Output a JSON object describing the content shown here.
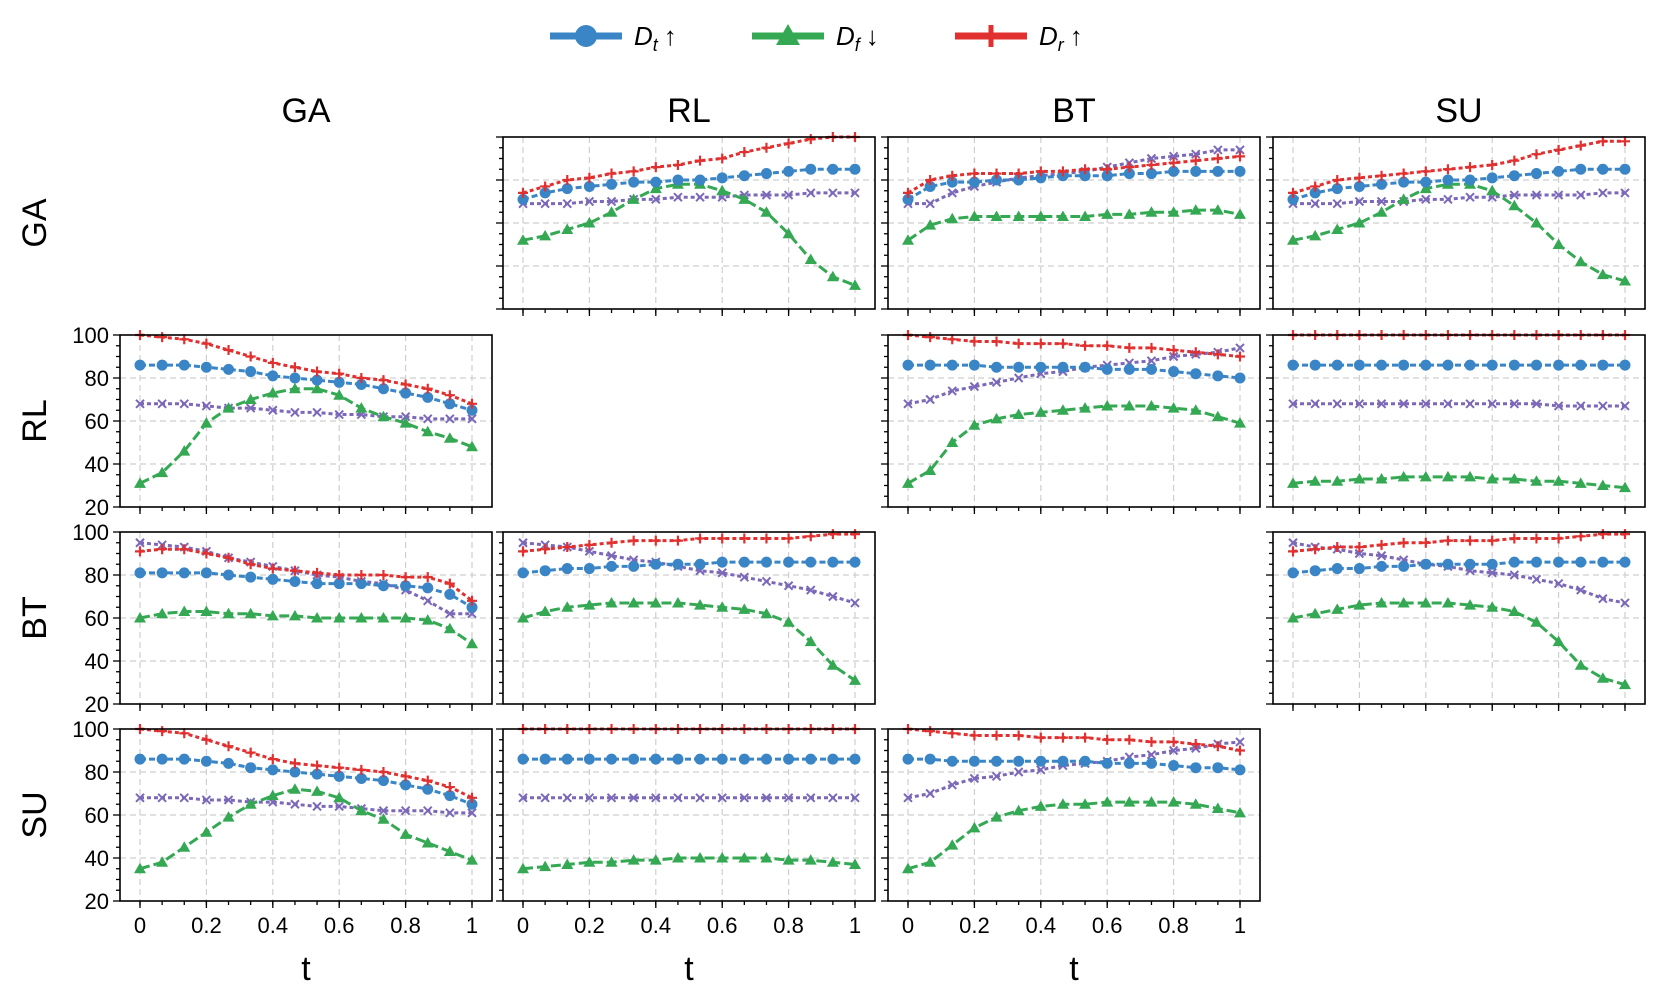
{
  "chart_data": {
    "type": "line",
    "title": "",
    "xlabel": "t",
    "ylabel": "",
    "xlim": [
      0,
      1
    ],
    "ylim": [
      20,
      100
    ],
    "x_ticks": [
      "0",
      "0.2",
      "0.4",
      "0.6",
      "0.8",
      "1"
    ],
    "y_ticks": [
      "20",
      "40",
      "60",
      "80",
      "100"
    ],
    "columns": [
      "GA",
      "RL",
      "BT",
      "SU"
    ],
    "rows": [
      "GA",
      "RL",
      "BT",
      "SU"
    ],
    "x": [
      0,
      0.0667,
      0.1333,
      0.2,
      0.2667,
      0.3333,
      0.4,
      0.4667,
      0.5333,
      0.6,
      0.6667,
      0.7333,
      0.8,
      0.8667,
      0.9333,
      1
    ],
    "legend": [
      {
        "key": "Dt",
        "base": "D",
        "sub": "t",
        "arrow": "↑",
        "color": "#3a85c6",
        "marker": "circle"
      },
      {
        "key": "Df",
        "base": "D",
        "sub": "f",
        "arrow": "↓",
        "color": "#35a853",
        "marker": "triangle"
      },
      {
        "key": "Dr",
        "base": "D",
        "sub": "r",
        "arrow": "↑",
        "color": "#e0302f",
        "marker": "plus"
      }
    ],
    "series_styles": {
      "Dt": {
        "color": "#3a85c6",
        "marker": "circle"
      },
      "Df": {
        "color": "#35a853",
        "marker": "triangle"
      },
      "Dr": {
        "color": "#e0302f",
        "marker": "plus"
      },
      "Dx": {
        "color": "#7b68b8",
        "marker": "x"
      }
    },
    "panels": [
      {
        "row": "GA",
        "col": "RL",
        "series": {
          "Dr": [
            74,
            77,
            80,
            81,
            83,
            84,
            86,
            87,
            89,
            90,
            93,
            95,
            97,
            99,
            100,
            100
          ],
          "Dt": [
            71,
            74,
            76,
            77,
            78,
            79,
            79,
            80,
            80,
            81,
            82,
            83,
            84,
            85,
            85,
            85
          ],
          "Df": [
            52,
            54,
            57,
            60,
            65,
            71,
            76,
            78,
            78,
            75,
            71,
            65,
            55,
            43,
            35,
            31
          ],
          "Dx": [
            69,
            69,
            69,
            70,
            70,
            71,
            71,
            72,
            72,
            72,
            73,
            73,
            73,
            74,
            74,
            74
          ]
        }
      },
      {
        "row": "GA",
        "col": "BT",
        "series": {
          "Dr": [
            74,
            80,
            82,
            83,
            83,
            83,
            84,
            84,
            85,
            85,
            86,
            87,
            88,
            89,
            90,
            91
          ],
          "Dt": [
            71,
            77,
            79,
            79,
            80,
            80,
            81,
            82,
            82,
            82,
            83,
            83,
            84,
            84,
            84,
            84
          ],
          "Df": [
            52,
            59,
            62,
            63,
            63,
            63,
            63,
            63,
            63,
            64,
            64,
            65,
            65,
            66,
            66,
            64
          ],
          "Dx": [
            69,
            69,
            74,
            77,
            79,
            81,
            82,
            83,
            84,
            86,
            88,
            90,
            91,
            92,
            94,
            94
          ]
        }
      },
      {
        "row": "GA",
        "col": "SU",
        "series": {
          "Dr": [
            74,
            77,
            80,
            81,
            82,
            83,
            84,
            85,
            86,
            87,
            89,
            92,
            94,
            96,
            98,
            98
          ],
          "Dt": [
            71,
            74,
            76,
            77,
            78,
            79,
            79,
            80,
            80,
            81,
            82,
            83,
            84,
            85,
            85,
            85
          ],
          "Df": [
            52,
            54,
            57,
            60,
            65,
            71,
            76,
            78,
            78,
            75,
            68,
            60,
            50,
            42,
            36,
            33
          ],
          "Dx": [
            69,
            69,
            69,
            70,
            70,
            70,
            71,
            71,
            72,
            72,
            73,
            73,
            73,
            73,
            74,
            74
          ]
        }
      },
      {
        "row": "RL",
        "col": "GA",
        "series": {
          "Dr": [
            100,
            99,
            98,
            96,
            93,
            90,
            87,
            85,
            83,
            82,
            80,
            79,
            77,
            75,
            72,
            68
          ],
          "Dt": [
            86,
            86,
            86,
            85,
            84,
            83,
            81,
            80,
            79,
            78,
            77,
            75,
            73,
            71,
            68,
            65
          ],
          "Df": [
            31,
            36,
            46,
            59,
            66,
            70,
            73,
            75,
            75,
            72,
            66,
            62,
            59,
            55,
            52,
            48
          ],
          "Dx": [
            68,
            68,
            68,
            67,
            66,
            66,
            65,
            64,
            64,
            63,
            63,
            62,
            62,
            61,
            61,
            61
          ]
        }
      },
      {
        "row": "RL",
        "col": "BT",
        "series": {
          "Dr": [
            100,
            99,
            98,
            97,
            97,
            96,
            96,
            96,
            95,
            95,
            94,
            94,
            93,
            92,
            91,
            90
          ],
          "Dt": [
            86,
            86,
            86,
            86,
            85,
            85,
            85,
            85,
            85,
            84,
            84,
            84,
            83,
            82,
            81,
            80
          ],
          "Df": [
            31,
            37,
            50,
            58,
            61,
            63,
            64,
            65,
            66,
            67,
            67,
            67,
            66,
            65,
            62,
            59
          ],
          "Dx": [
            68,
            70,
            74,
            76,
            78,
            80,
            82,
            83,
            85,
            86,
            87,
            88,
            90,
            91,
            92,
            94
          ]
        }
      },
      {
        "row": "RL",
        "col": "SU",
        "series": {
          "Dr": [
            100,
            100,
            100,
            100,
            100,
            100,
            100,
            100,
            100,
            100,
            100,
            100,
            100,
            100,
            100,
            100
          ],
          "Dt": [
            86,
            86,
            86,
            86,
            86,
            86,
            86,
            86,
            86,
            86,
            86,
            86,
            86,
            86,
            86,
            86
          ],
          "Df": [
            31,
            32,
            32,
            33,
            33,
            34,
            34,
            34,
            34,
            33,
            33,
            32,
            32,
            31,
            30,
            29
          ],
          "Dx": [
            68,
            68,
            68,
            68,
            68,
            68,
            68,
            68,
            68,
            68,
            68,
            68,
            67,
            67,
            67,
            67
          ]
        }
      },
      {
        "row": "BT",
        "col": "GA",
        "series": {
          "Dr": [
            91,
            92,
            92,
            90,
            88,
            85,
            83,
            82,
            81,
            80,
            80,
            80,
            79,
            79,
            76,
            68
          ],
          "Dt": [
            81,
            81,
            81,
            81,
            80,
            79,
            78,
            77,
            76,
            76,
            76,
            75,
            75,
            74,
            71,
            65
          ],
          "Df": [
            60,
            62,
            63,
            63,
            62,
            62,
            61,
            61,
            60,
            60,
            60,
            60,
            60,
            59,
            55,
            48
          ],
          "Dx": [
            95,
            94,
            93,
            91,
            88,
            86,
            84,
            82,
            80,
            79,
            77,
            76,
            73,
            68,
            62,
            62
          ]
        }
      },
      {
        "row": "BT",
        "col": "RL",
        "series": {
          "Dr": [
            91,
            92,
            93,
            94,
            95,
            96,
            96,
            96,
            97,
            97,
            97,
            97,
            97,
            98,
            99,
            99
          ],
          "Dt": [
            81,
            82,
            83,
            83,
            84,
            84,
            85,
            85,
            85,
            86,
            86,
            86,
            86,
            86,
            86,
            86
          ],
          "Df": [
            60,
            63,
            65,
            66,
            67,
            67,
            67,
            67,
            66,
            65,
            64,
            62,
            58,
            49,
            38,
            31
          ],
          "Dx": [
            95,
            94,
            93,
            91,
            89,
            87,
            86,
            84,
            82,
            81,
            79,
            77,
            75,
            73,
            70,
            67
          ]
        }
      },
      {
        "row": "BT",
        "col": "SU",
        "series": {
          "Dr": [
            91,
            92,
            93,
            93,
            94,
            95,
            95,
            96,
            96,
            96,
            97,
            97,
            97,
            98,
            99,
            99
          ],
          "Dt": [
            81,
            82,
            83,
            83,
            84,
            84,
            85,
            85,
            85,
            85,
            86,
            86,
            86,
            86,
            86,
            86
          ],
          "Df": [
            60,
            62,
            64,
            66,
            67,
            67,
            67,
            67,
            66,
            65,
            63,
            58,
            49,
            38,
            32,
            29
          ],
          "Dx": [
            95,
            93,
            92,
            90,
            89,
            87,
            85,
            84,
            82,
            81,
            80,
            78,
            76,
            73,
            69,
            67
          ]
        }
      },
      {
        "row": "SU",
        "col": "GA",
        "series": {
          "Dr": [
            100,
            99,
            98,
            95,
            92,
            89,
            86,
            84,
            83,
            82,
            81,
            80,
            78,
            76,
            73,
            68
          ],
          "Dt": [
            86,
            86,
            86,
            85,
            84,
            82,
            81,
            80,
            79,
            78,
            77,
            76,
            74,
            72,
            69,
            65
          ],
          "Df": [
            35,
            38,
            45,
            52,
            59,
            65,
            69,
            72,
            71,
            68,
            62,
            58,
            51,
            47,
            43,
            39
          ],
          "Dx": [
            68,
            68,
            68,
            67,
            67,
            66,
            66,
            65,
            64,
            64,
            63,
            62,
            62,
            62,
            61,
            61
          ]
        }
      },
      {
        "row": "SU",
        "col": "RL",
        "series": {
          "Dr": [
            100,
            100,
            100,
            100,
            100,
            100,
            100,
            100,
            100,
            100,
            100,
            100,
            100,
            100,
            100,
            100
          ],
          "Dt": [
            86,
            86,
            86,
            86,
            86,
            86,
            86,
            86,
            86,
            86,
            86,
            86,
            86,
            86,
            86,
            86
          ],
          "Df": [
            35,
            36,
            37,
            38,
            38,
            39,
            39,
            40,
            40,
            40,
            40,
            40,
            39,
            39,
            38,
            37
          ],
          "Dx": [
            68,
            68,
            68,
            68,
            68,
            68,
            68,
            68,
            68,
            68,
            68,
            68,
            68,
            68,
            68,
            68
          ]
        }
      },
      {
        "row": "SU",
        "col": "BT",
        "series": {
          "Dr": [
            100,
            99,
            98,
            97,
            97,
            97,
            96,
            96,
            96,
            95,
            95,
            94,
            94,
            93,
            92,
            90
          ],
          "Dt": [
            86,
            86,
            85,
            85,
            85,
            85,
            85,
            85,
            85,
            84,
            84,
            84,
            83,
            82,
            82,
            81
          ],
          "Df": [
            35,
            38,
            46,
            54,
            59,
            62,
            64,
            65,
            65,
            66,
            66,
            66,
            66,
            65,
            63,
            61
          ],
          "Dx": [
            68,
            70,
            74,
            77,
            78,
            80,
            81,
            83,
            84,
            85,
            87,
            88,
            90,
            91,
            93,
            94
          ]
        }
      }
    ]
  }
}
